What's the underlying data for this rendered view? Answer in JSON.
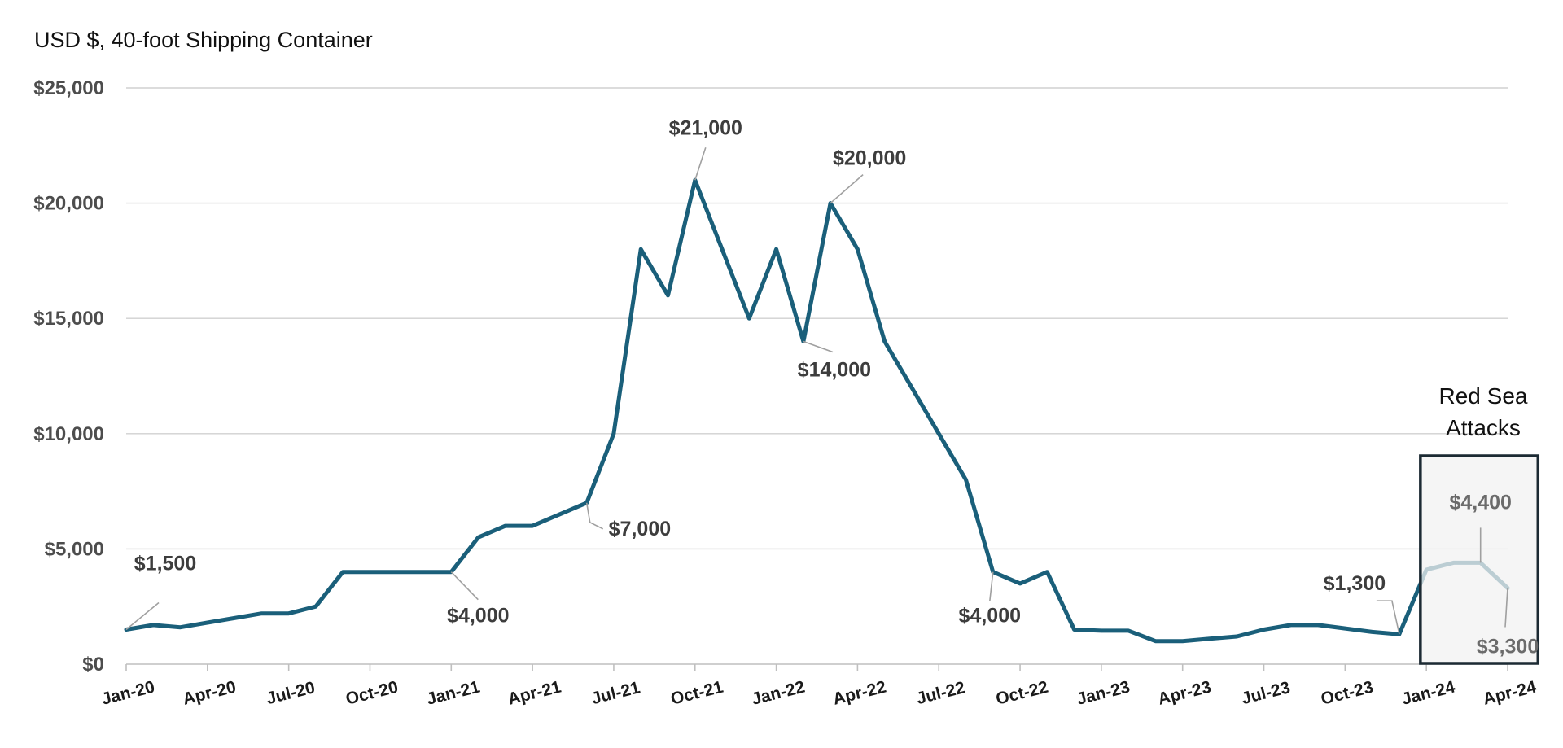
{
  "chart_data": {
    "type": "line",
    "title": "USD $, 40-foot Shipping Container",
    "xlabel": "",
    "ylabel": "",
    "ylim": [
      0,
      25000
    ],
    "y_ticks": [
      {
        "value": 0,
        "label": "$0"
      },
      {
        "value": 5000,
        "label": "$5,000"
      },
      {
        "value": 10000,
        "label": "$10,000"
      },
      {
        "value": 15000,
        "label": "$15,000"
      },
      {
        "value": 20000,
        "label": "$20,000"
      },
      {
        "value": 25000,
        "label": "$25,000"
      }
    ],
    "x_ticks": [
      "Jan-20",
      "Apr-20",
      "Jul-20",
      "Oct-20",
      "Jan-21",
      "Apr-21",
      "Jul-21",
      "Oct-21",
      "Jan-22",
      "Apr-22",
      "Jul-22",
      "Oct-22",
      "Jan-23",
      "Apr-23",
      "Jul-23",
      "Oct-23",
      "Jan-24",
      "Apr-24"
    ],
    "grid": true,
    "series": [
      {
        "color": "#1a5f7a",
        "x": [
          "Jan-20",
          "Feb-20",
          "Mar-20",
          "Apr-20",
          "May-20",
          "Jun-20",
          "Jul-20",
          "Aug-20",
          "Sep-20",
          "Oct-20",
          "Nov-20",
          "Dec-20",
          "Jan-21",
          "Feb-21",
          "Mar-21",
          "Apr-21",
          "May-21",
          "Jun-21",
          "Jul-21",
          "Aug-21",
          "Sep-21",
          "Oct-21",
          "Nov-21",
          "Dec-21",
          "Jan-22",
          "Feb-22",
          "Mar-22",
          "Apr-22",
          "May-22",
          "Jun-22",
          "Jul-22",
          "Aug-22",
          "Sep-22",
          "Oct-22",
          "Nov-22",
          "Dec-22",
          "Jan-23",
          "Feb-23",
          "Mar-23",
          "Apr-23",
          "May-23",
          "Jun-23",
          "Jul-23",
          "Aug-23",
          "Sep-23",
          "Oct-23",
          "Nov-23",
          "Dec-23",
          "Jan-24",
          "Feb-24",
          "Mar-24",
          "Apr-24"
        ],
        "values": [
          1500,
          1700,
          1600,
          1800,
          2000,
          2200,
          2200,
          2500,
          4000,
          4000,
          4000,
          4000,
          4000,
          5500,
          6000,
          6000,
          6500,
          7000,
          10000,
          18000,
          16000,
          21000,
          18000,
          15000,
          18000,
          14000,
          20000,
          18000,
          14000,
          12000,
          10000,
          8000,
          4000,
          3500,
          4000,
          1500,
          1450,
          1450,
          1000,
          1000,
          1100,
          1200,
          1500,
          1700,
          1700,
          1550,
          1400,
          1300,
          4100,
          4400,
          4400,
          3300
        ]
      }
    ],
    "data_labels": [
      {
        "index": 0,
        "text": "$1,500"
      },
      {
        "index": 12,
        "text": "$4,000"
      },
      {
        "index": 17,
        "text": "$7,000"
      },
      {
        "index": 21,
        "text": "$21,000"
      },
      {
        "index": 25,
        "text": "$14,000"
      },
      {
        "index": 26,
        "text": "$20,000"
      },
      {
        "index": 32,
        "text": "$4,000"
      },
      {
        "index": 47,
        "text": "$1,300"
      },
      {
        "index": 50,
        "text": "$4,400"
      },
      {
        "index": 51,
        "text": "$3,300"
      }
    ],
    "annotation": {
      "lines": [
        "Red Sea",
        "Attacks"
      ],
      "start_index": 47.9,
      "end_index": 52
    }
  }
}
